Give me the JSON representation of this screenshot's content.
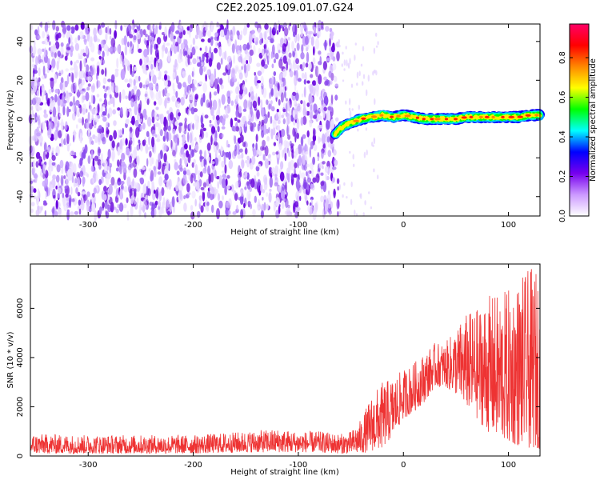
{
  "title": "C2E2.2025.109.01.07.G24",
  "chart_data": [
    {
      "type": "heatmap",
      "xlabel": "Height of straight line (km)",
      "ylabel": "Frequency (Hz)",
      "xlim": [
        -355,
        130
      ],
      "ylim": [
        -50,
        49
      ],
      "xticks": [
        -300,
        -200,
        -100,
        0,
        100
      ],
      "yticks": [
        -40,
        -20,
        0,
        20,
        40
      ],
      "noise_region_x": [
        -355,
        -62
      ],
      "signal_trace": [
        [
          -65,
          -8
        ],
        [
          -60,
          -5
        ],
        [
          -55,
          -3
        ],
        [
          -50,
          -2
        ],
        [
          -45,
          -1
        ],
        [
          -40,
          0
        ],
        [
          -30,
          1
        ],
        [
          -20,
          2
        ],
        [
          -10,
          1
        ],
        [
          0,
          2
        ],
        [
          10,
          1
        ],
        [
          20,
          0
        ],
        [
          30,
          0
        ],
        [
          40,
          0
        ],
        [
          50,
          0
        ],
        [
          60,
          1
        ],
        [
          70,
          1
        ],
        [
          80,
          1
        ],
        [
          90,
          1
        ],
        [
          100,
          1
        ],
        [
          110,
          1
        ],
        [
          120,
          2
        ],
        [
          130,
          2
        ]
      ],
      "grid": false,
      "colorbar": {
        "label": "Normalized spectral amplitude",
        "ticks": [
          0.0,
          0.2,
          0.4,
          0.6,
          0.8
        ],
        "range": [
          0,
          0.97
        ],
        "colors": [
          "#ffffff",
          "#cc99ff",
          "#7700ee",
          "#0000ff",
          "#00ffff",
          "#00ff00",
          "#ffff00",
          "#ff8800",
          "#ff0000",
          "#ff0066"
        ]
      }
    },
    {
      "type": "line",
      "xlabel": "Height of straight line (km)",
      "ylabel": "SNR (10 * v/v)",
      "xlim": [
        -355,
        130
      ],
      "ylim": [
        0,
        7800
      ],
      "xticks": [
        -300,
        -200,
        -100,
        0,
        100
      ],
      "yticks": [
        0,
        2000,
        4000,
        6000
      ],
      "grid": false,
      "series": [
        {
          "color": "#ee3333",
          "envelope": [
            {
              "x": -355,
              "low": 100,
              "high": 900
            },
            {
              "x": -300,
              "low": 100,
              "high": 850
            },
            {
              "x": -250,
              "low": 100,
              "high": 850
            },
            {
              "x": -200,
              "low": 100,
              "high": 850
            },
            {
              "x": -150,
              "low": 150,
              "high": 1000
            },
            {
              "x": -120,
              "low": 150,
              "high": 1100
            },
            {
              "x": -100,
              "low": 150,
              "high": 1000
            },
            {
              "x": -80,
              "low": 150,
              "high": 1000
            },
            {
              "x": -60,
              "low": 100,
              "high": 900
            },
            {
              "x": -50,
              "low": 100,
              "high": 1000
            },
            {
              "x": -40,
              "low": 100,
              "high": 1500
            },
            {
              "x": -30,
              "low": 200,
              "high": 2500
            },
            {
              "x": -20,
              "low": 300,
              "high": 3000
            },
            {
              "x": -10,
              "low": 800,
              "high": 3200
            },
            {
              "x": 0,
              "low": 1500,
              "high": 3500
            },
            {
              "x": 10,
              "low": 1800,
              "high": 3800
            },
            {
              "x": 20,
              "low": 2200,
              "high": 4200
            },
            {
              "x": 30,
              "low": 2800,
              "high": 4600
            },
            {
              "x": 40,
              "low": 2800,
              "high": 4600
            },
            {
              "x": 50,
              "low": 2500,
              "high": 5200
            },
            {
              "x": 60,
              "low": 2000,
              "high": 5800
            },
            {
              "x": 70,
              "low": 1500,
              "high": 6000
            },
            {
              "x": 80,
              "low": 1000,
              "high": 6500
            },
            {
              "x": 90,
              "low": 700,
              "high": 6600
            },
            {
              "x": 100,
              "low": 500,
              "high": 6800
            },
            {
              "x": 110,
              "low": 400,
              "high": 7200
            },
            {
              "x": 120,
              "low": 300,
              "high": 7600
            },
            {
              "x": 130,
              "low": 300,
              "high": 7600
            }
          ]
        }
      ]
    }
  ]
}
